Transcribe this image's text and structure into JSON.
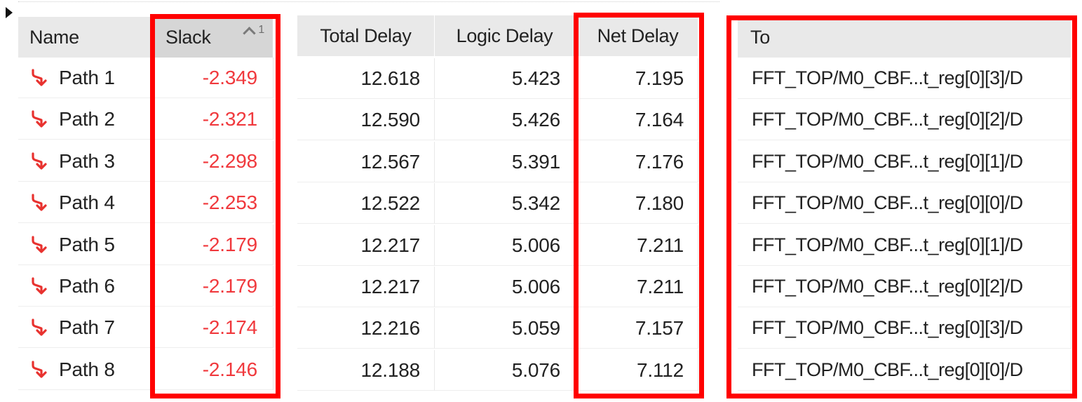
{
  "columns": {
    "name": "Name",
    "slack": "Slack",
    "slack_sort_order": "1",
    "total_delay": "Total Delay",
    "logic_delay": "Logic Delay",
    "net_delay": "Net Delay",
    "to": "To"
  },
  "rows": [
    {
      "name": "Path 1",
      "slack": "-2.349",
      "total_delay": "12.618",
      "logic_delay": "5.423",
      "net_delay": "7.195",
      "to": "FFT_TOP/M0_CBF...t_reg[0][3]/D"
    },
    {
      "name": "Path 2",
      "slack": "-2.321",
      "total_delay": "12.590",
      "logic_delay": "5.426",
      "net_delay": "7.164",
      "to": "FFT_TOP/M0_CBF...t_reg[0][2]/D"
    },
    {
      "name": "Path 3",
      "slack": "-2.298",
      "total_delay": "12.567",
      "logic_delay": "5.391",
      "net_delay": "7.176",
      "to": "FFT_TOP/M0_CBF...t_reg[0][1]/D"
    },
    {
      "name": "Path 4",
      "slack": "-2.253",
      "total_delay": "12.522",
      "logic_delay": "5.342",
      "net_delay": "7.180",
      "to": "FFT_TOP/M0_CBF...t_reg[0][0]/D"
    },
    {
      "name": "Path 5",
      "slack": "-2.179",
      "total_delay": "12.217",
      "logic_delay": "5.006",
      "net_delay": "7.211",
      "to": "FFT_TOP/M0_CBF...t_reg[0][1]/D"
    },
    {
      "name": "Path 6",
      "slack": "-2.179",
      "total_delay": "12.217",
      "logic_delay": "5.006",
      "net_delay": "7.211",
      "to": "FFT_TOP/M0_CBF...t_reg[0][2]/D"
    },
    {
      "name": "Path 7",
      "slack": "-2.174",
      "total_delay": "12.216",
      "logic_delay": "5.059",
      "net_delay": "7.157",
      "to": "FFT_TOP/M0_CBF...t_reg[0][3]/D"
    },
    {
      "name": "Path 8",
      "slack": "-2.146",
      "total_delay": "12.188",
      "logic_delay": "5.076",
      "net_delay": "7.112",
      "to": "FFT_TOP/M0_CBF...t_reg[0][0]/D"
    }
  ],
  "icons": {
    "expander": "expand-triangle-icon",
    "row": "timing-path-icon",
    "sort": "sort-ascending-icon"
  },
  "colors": {
    "slack_negative": "#f0393d",
    "highlight_box": "#ff0000",
    "path_icon": "#e8322f"
  }
}
